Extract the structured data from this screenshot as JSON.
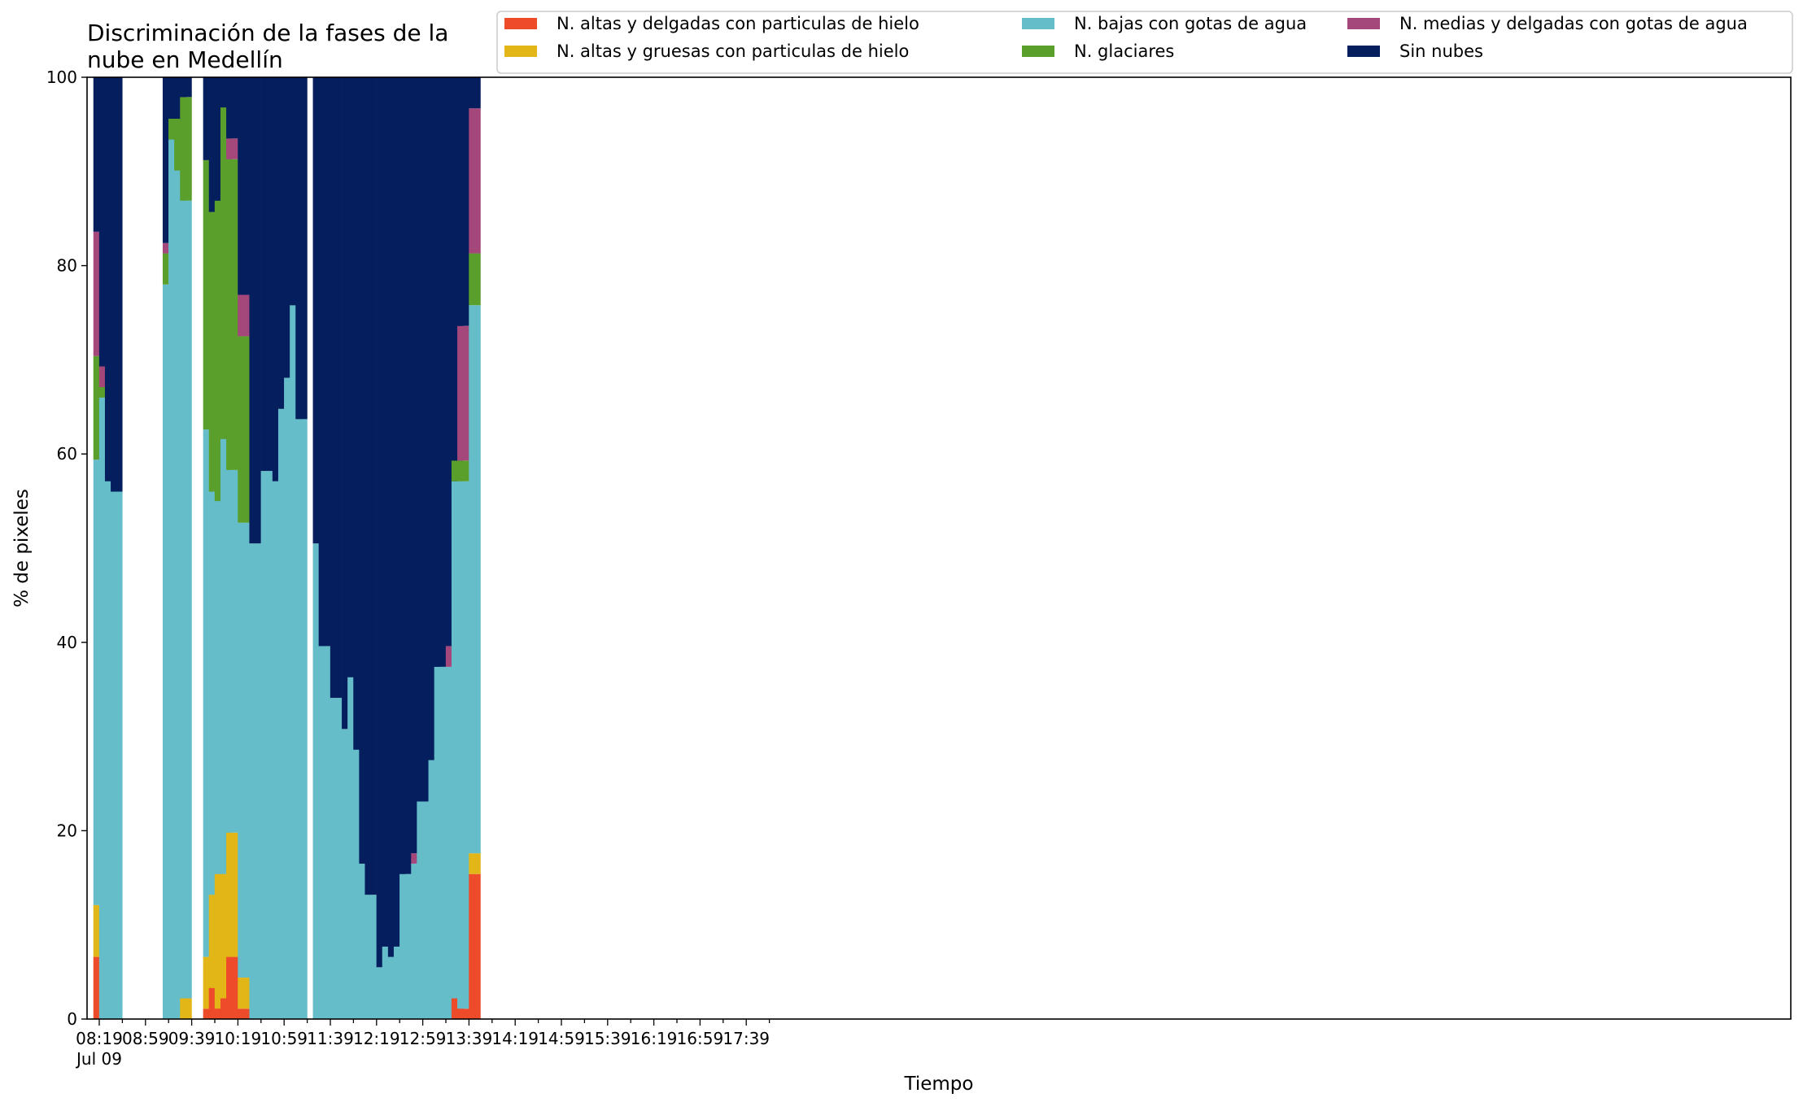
{
  "chart_data": {
    "type": "bar",
    "stacked": true,
    "title": "Discriminación de la fases de la nube en Medellín",
    "title_lines": [
      "Discriminación de la fases de la",
      "nube en Medellín"
    ],
    "xlabel": "Tiempo",
    "ylabel": "% de pixeles",
    "ylim": [
      0,
      100
    ],
    "yticks": [
      "0",
      "20",
      "40",
      "60",
      "80",
      "100"
    ],
    "x_interval_minutes": 5,
    "x_ticks": [
      {
        "label": "08:19",
        "sublabel": "Jul 09",
        "index": 0
      },
      {
        "label": "08:59",
        "index": 8
      },
      {
        "label": "09:39",
        "index": 16
      },
      {
        "label": "10:19",
        "index": 24
      },
      {
        "label": "10:59",
        "index": 32
      },
      {
        "label": "11:39",
        "index": 40
      },
      {
        "label": "12:19",
        "index": 48
      },
      {
        "label": "12:59",
        "index": 56
      },
      {
        "label": "13:39",
        "index": 64
      },
      {
        "label": "14:19",
        "index": 72
      },
      {
        "label": "14:59",
        "index": 80
      },
      {
        "label": "15:39",
        "index": 88
      },
      {
        "label": "16:19",
        "index": 96
      },
      {
        "label": "16:59",
        "index": 104
      },
      {
        "label": "17:39",
        "index": 112
      }
    ],
    "legend_position": "top",
    "grid": false,
    "series": [
      {
        "name": "N. altas y delgadas con particulas de hielo",
        "color": "#ee4b2b"
      },
      {
        "name": "N. altas y gruesas con particulas de hielo",
        "color": "#e3b618"
      },
      {
        "name": "N. bajas con gotas de agua",
        "color": "#65bdc9"
      },
      {
        "name": "N. glaciares",
        "color": "#5a9e2c"
      },
      {
        "name": "N. medias y delgadas con gotas de agua",
        "color": "#a4477a"
      },
      {
        "name": "Sin nubes",
        "color": "#051f5e"
      }
    ],
    "bars": [
      {
        "time": "08:19",
        "values": [
          6.6,
          5.5,
          47.3,
          11.0,
          13.2,
          16.4
        ]
      },
      {
        "time": "08:24",
        "values": [
          0,
          0,
          66.0,
          1.1,
          2.2,
          30.7
        ]
      },
      {
        "time": "08:29",
        "values": [
          0,
          0,
          57.1,
          0,
          0,
          42.9
        ]
      },
      {
        "time": "08:34",
        "values": [
          0,
          0,
          56.0,
          0,
          0,
          44.0
        ]
      },
      {
        "time": "09:19",
        "values": [
          0,
          0,
          78.0,
          3.3,
          1.1,
          17.6
        ]
      },
      {
        "time": "09:24",
        "values": [
          0,
          0,
          93.4,
          2.2,
          0,
          4.4
        ]
      },
      {
        "time": "09:29",
        "values": [
          0,
          0,
          90.1,
          5.5,
          0,
          4.4
        ]
      },
      {
        "time": "09:34",
        "values": [
          0,
          2.2,
          84.7,
          11.0,
          0,
          2.1
        ]
      },
      {
        "time": "09:54",
        "values": [
          1.1,
          5.5,
          56.0,
          28.6,
          0,
          8.8
        ]
      },
      {
        "time": "09:59",
        "values": [
          3.3,
          9.9,
          42.8,
          29.7,
          0,
          14.3
        ]
      },
      {
        "time": "10:04",
        "values": [
          1.1,
          14.3,
          39.6,
          31.9,
          0,
          13.1
        ]
      },
      {
        "time": "10:09",
        "values": [
          2.2,
          13.2,
          46.2,
          35.2,
          0,
          3.2
        ]
      },
      {
        "time": "10:14",
        "values": [
          6.6,
          13.2,
          38.5,
          33.0,
          2.2,
          6.5
        ]
      },
      {
        "time": "10:24",
        "values": [
          1.1,
          3.3,
          48.3,
          19.8,
          4.4,
          23.1
        ]
      },
      {
        "time": "10:34",
        "values": [
          0,
          0,
          50.5,
          0,
          0,
          49.5
        ]
      },
      {
        "time": "10:44",
        "values": [
          0,
          0,
          58.2,
          0,
          0,
          41.8
        ]
      },
      {
        "time": "10:54",
        "values": [
          0,
          0,
          57.1,
          0,
          0,
          42.9
        ]
      },
      {
        "time": "10:59",
        "values": [
          0,
          0,
          64.8,
          0,
          0,
          35.2
        ]
      },
      {
        "time": "11:04",
        "values": [
          0,
          0,
          68.1,
          0,
          0,
          31.9
        ]
      },
      {
        "time": "11:09",
        "values": [
          0,
          0,
          75.8,
          0,
          0,
          24.2
        ]
      },
      {
        "time": "11:14",
        "values": [
          0,
          0,
          63.7,
          0,
          0,
          36.3
        ]
      },
      {
        "time": "11:29",
        "values": [
          0,
          0,
          50.5,
          0,
          0,
          49.5
        ]
      },
      {
        "time": "11:34",
        "values": [
          0,
          0,
          39.6,
          0,
          0,
          60.4
        ]
      },
      {
        "time": "11:44",
        "values": [
          0,
          0,
          34.1,
          0,
          0,
          65.9
        ]
      },
      {
        "time": "11:54",
        "values": [
          0,
          0,
          30.8,
          0,
          0,
          69.2
        ]
      },
      {
        "time": "11:59",
        "values": [
          0,
          0,
          36.3,
          0,
          0,
          63.7
        ]
      },
      {
        "time": "12:04",
        "values": [
          0,
          0,
          28.6,
          0,
          0,
          71.4
        ]
      },
      {
        "time": "12:09",
        "values": [
          0,
          0,
          16.5,
          0,
          0,
          83.5
        ]
      },
      {
        "time": "12:14",
        "values": [
          0,
          0,
          13.2,
          0,
          0,
          86.8
        ]
      },
      {
        "time": "12:24",
        "values": [
          0,
          0,
          5.5,
          0,
          0,
          94.5
        ]
      },
      {
        "time": "12:29",
        "values": [
          0,
          0,
          7.7,
          0,
          0,
          92.3
        ]
      },
      {
        "time": "12:34",
        "values": [
          0,
          0,
          6.6,
          0,
          0,
          93.4
        ]
      },
      {
        "time": "12:39",
        "values": [
          0,
          0,
          7.7,
          0,
          0,
          92.3
        ]
      },
      {
        "time": "12:44",
        "values": [
          0,
          0,
          15.4,
          0,
          0,
          84.6
        ]
      },
      {
        "time": "12:54",
        "values": [
          0,
          0,
          16.5,
          0,
          1.1,
          82.4
        ]
      },
      {
        "time": "12:59",
        "values": [
          0,
          0,
          23.1,
          0,
          0,
          76.9
        ]
      },
      {
        "time": "13:04",
        "values": [
          0,
          0,
          23.1,
          0,
          0,
          76.9
        ]
      },
      {
        "time": "13:09",
        "values": [
          0,
          0,
          27.5,
          0,
          0,
          72.5
        ]
      },
      {
        "time": "13:14",
        "values": [
          0,
          0,
          37.4,
          0,
          0,
          62.6
        ]
      },
      {
        "time": "13:24",
        "values": [
          0,
          0,
          37.4,
          0,
          2.2,
          60.4
        ]
      },
      {
        "time": "13:29",
        "values": [
          2.2,
          0,
          54.9,
          2.2,
          0,
          40.7
        ]
      },
      {
        "time": "13:34",
        "values": [
          1.1,
          0,
          56.0,
          2.2,
          14.3,
          26.4
        ]
      },
      {
        "time": "13:44",
        "values": [
          15.4,
          2.2,
          58.2,
          5.5,
          15.4,
          3.3
        ]
      }
    ]
  }
}
